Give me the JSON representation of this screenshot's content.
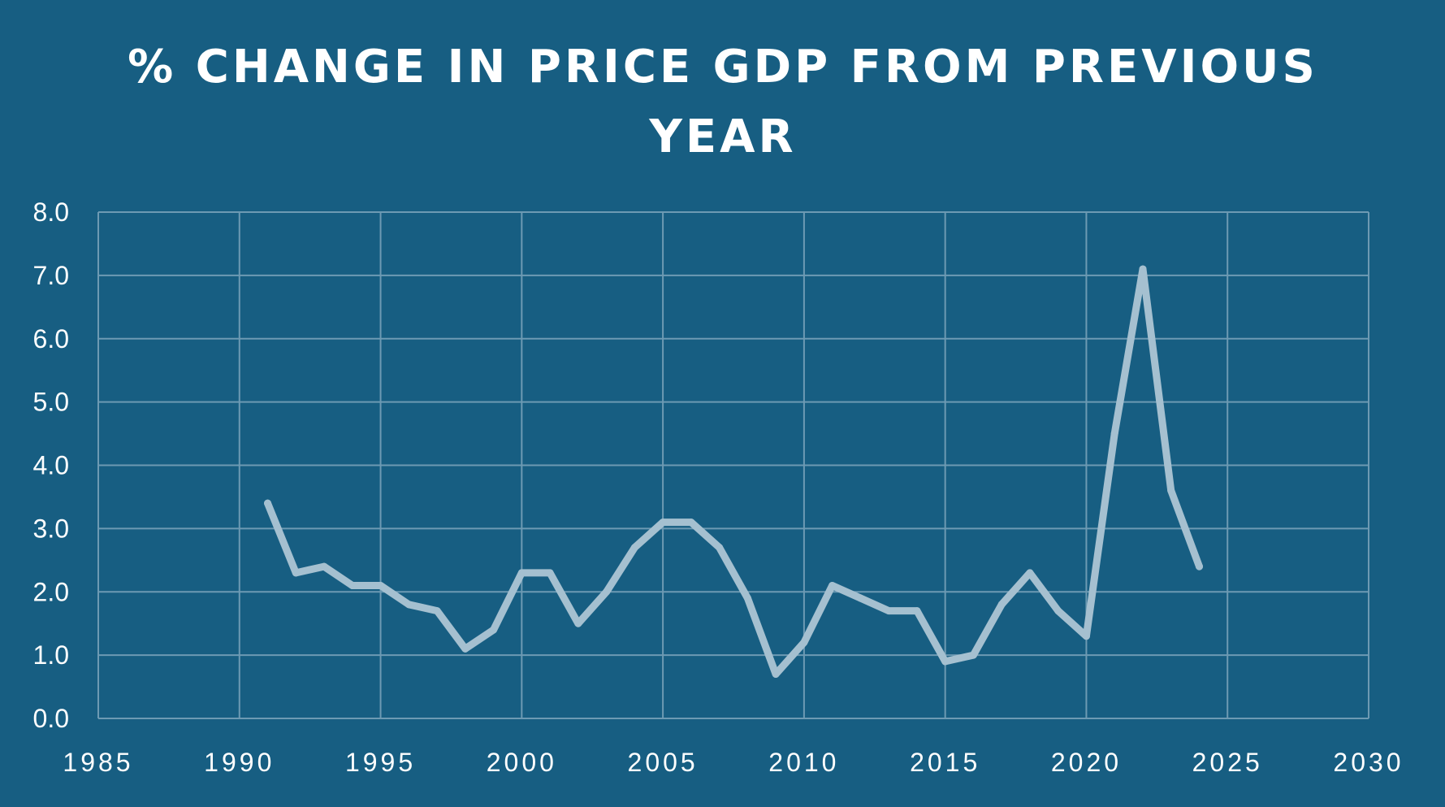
{
  "chart_data": {
    "type": "line",
    "title": "% CHANGE IN PRICE GDP FROM PREVIOUS YEAR",
    "xlabel": "",
    "ylabel": "",
    "xlim": [
      1985,
      2030
    ],
    "ylim": [
      0,
      8
    ],
    "x_ticks": [
      1985,
      1990,
      1995,
      2000,
      2005,
      2010,
      2015,
      2020,
      2025,
      2030
    ],
    "x_tick_labels": [
      "1985",
      "1990",
      "1995",
      "2000",
      "2005",
      "2010",
      "2015",
      "2020",
      "2025",
      "2030"
    ],
    "y_ticks": [
      0,
      1,
      2,
      3,
      4,
      5,
      6,
      7,
      8
    ],
    "y_tick_labels": [
      "0.0",
      "1.0",
      "2.0",
      "3.0",
      "4.0",
      "5.0",
      "6.0",
      "7.0",
      "8.0"
    ],
    "grid": true,
    "legend": "none",
    "series": [
      {
        "name": "% change in price GDP",
        "x": [
          1991,
          1992,
          1993,
          1994,
          1995,
          1996,
          1997,
          1998,
          1999,
          2000,
          2001,
          2002,
          2003,
          2004,
          2005,
          2006,
          2007,
          2008,
          2009,
          2010,
          2011,
          2012,
          2013,
          2014,
          2015,
          2016,
          2017,
          2018,
          2019,
          2020,
          2021,
          2022,
          2023,
          2024
        ],
        "values": [
          3.4,
          2.3,
          2.4,
          2.1,
          2.1,
          1.8,
          1.7,
          1.1,
          1.4,
          2.3,
          2.3,
          1.5,
          2.0,
          2.7,
          3.1,
          3.1,
          2.7,
          1.9,
          0.7,
          1.2,
          2.1,
          1.9,
          1.7,
          1.7,
          0.9,
          1.0,
          1.8,
          2.3,
          1.7,
          1.3,
          4.5,
          7.1,
          3.6,
          2.4
        ]
      }
    ]
  },
  "colors": {
    "background": "#175e82",
    "grid": "#6d9ab3",
    "line": "#a5c0d0",
    "text": "#ffffff"
  }
}
